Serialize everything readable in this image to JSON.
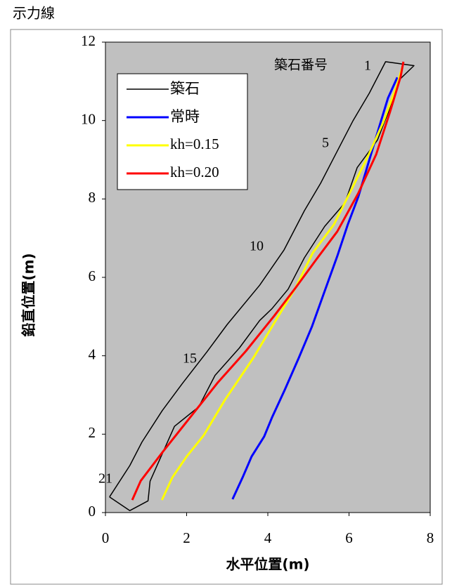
{
  "chart_data": {
    "type": "line",
    "title": "示力線",
    "x_label": "水平位置(m)",
    "y_label": "鉛直位置(m)",
    "xlim": [
      0,
      8
    ],
    "xticks": [
      0,
      2,
      4,
      6,
      8
    ],
    "ylim": [
      0,
      12
    ],
    "yticks": [
      0,
      2,
      4,
      6,
      8,
      10,
      12
    ],
    "grid": false,
    "legend": "upper left",
    "series": [
      {
        "name": "築石",
        "color": "#000000",
        "x": [
          0.1,
          0.6,
          0.9,
          1.4,
          1.9,
          2.5,
          3.0,
          3.8,
          4.4,
          4.9,
          5.3,
          5.7,
          6.1,
          6.5,
          6.9,
          7.6,
          7.2,
          7.0,
          6.7,
          6.2,
          5.9,
          5.4,
          4.9,
          4.5,
          4.1,
          3.8,
          3.3,
          2.7,
          2.3,
          1.7,
          1.4,
          1.1,
          1.05,
          0.6,
          0.1
        ],
        "values": [
          0.4,
          1.2,
          1.8,
          2.6,
          3.3,
          4.1,
          4.8,
          5.8,
          6.7,
          7.7,
          8.4,
          9.2,
          10.0,
          10.7,
          11.5,
          11.4,
          11.0,
          10.3,
          9.5,
          8.8,
          7.9,
          7.3,
          6.5,
          5.7,
          5.2,
          4.9,
          4.2,
          3.5,
          2.7,
          2.2,
          1.5,
          0.8,
          0.3,
          0.05,
          0.4
        ]
      },
      {
        "name": "常時",
        "color": "#0000ff",
        "x": [
          3.13,
          3.38,
          3.6,
          3.91,
          4.1,
          4.42,
          4.76,
          5.09,
          5.4,
          5.71,
          5.97,
          6.23,
          6.49,
          6.75,
          6.96,
          7.19
        ],
        "values": [
          0.34,
          0.9,
          1.43,
          1.94,
          2.42,
          3.14,
          3.94,
          4.75,
          5.65,
          6.54,
          7.35,
          8.06,
          8.96,
          9.86,
          10.57,
          11.1
        ]
      },
      {
        "name": "kh=0.15",
        "color": "#ffff00",
        "x": [
          1.39,
          1.65,
          2.0,
          2.42,
          2.94,
          3.64,
          4.16,
          4.68,
          5.11,
          5.63,
          6.06,
          6.49,
          6.84,
          7.19,
          7.32
        ],
        "values": [
          0.32,
          0.9,
          1.43,
          1.97,
          2.87,
          3.94,
          4.84,
          5.73,
          6.63,
          7.35,
          8.24,
          9.14,
          9.95,
          10.93,
          11.38
        ]
      },
      {
        "name": "kh=0.20",
        "color": "#ff0000",
        "x": [
          0.66,
          0.87,
          1.39,
          2.08,
          2.77,
          3.46,
          4.16,
          4.68,
          5.19,
          5.71,
          6.23,
          6.67,
          7.01,
          7.27,
          7.34
        ],
        "values": [
          0.32,
          0.81,
          1.52,
          2.42,
          3.32,
          4.12,
          5.02,
          5.73,
          6.45,
          7.17,
          8.15,
          9.14,
          10.22,
          11.11,
          11.5
        ]
      }
    ],
    "annotations": [
      "築石番号",
      "1",
      "5",
      "10",
      "15",
      "21"
    ]
  }
}
